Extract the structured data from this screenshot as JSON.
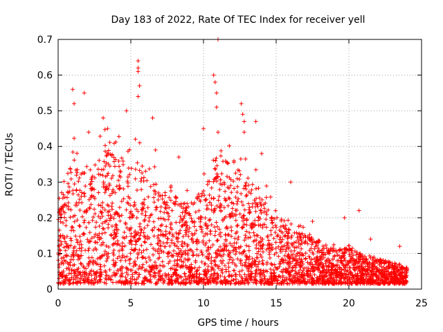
{
  "chart_data": {
    "type": "scatter",
    "title": "Day 183 of 2022, Rate Of TEC Index for receiver yell",
    "xlabel": "GPS time / hours",
    "ylabel": "ROTI / TECUs",
    "xlim": [
      0,
      25
    ],
    "ylim": [
      0,
      0.7
    ],
    "x_ticks": [
      0,
      5,
      10,
      15,
      20,
      25
    ],
    "y_ticks": [
      0,
      0.1,
      0.2,
      0.3,
      0.4,
      0.5,
      0.6,
      0.7
    ],
    "x_tick_labels": [
      "0",
      "5",
      "10",
      "15",
      "20",
      "25"
    ],
    "y_tick_labels": [
      "0",
      "0.1",
      "0.2",
      "0.3",
      "0.4",
      "0.5",
      "0.6",
      "0.7"
    ],
    "grid": true,
    "marker": "+",
    "color": "#ff0000",
    "x_range_of_data": [
      0,
      24
    ],
    "envelope": {
      "hours": [
        0,
        1,
        1.5,
        2,
        3,
        3.5,
        4,
        5,
        5.5,
        6,
        7,
        8,
        9,
        10,
        10.5,
        11,
        12,
        12.5,
        13,
        14,
        15,
        16,
        17,
        18,
        19,
        20,
        21,
        22,
        23,
        24
      ],
      "typical_max": [
        0.2,
        0.35,
        0.32,
        0.33,
        0.35,
        0.38,
        0.36,
        0.33,
        0.36,
        0.32,
        0.25,
        0.25,
        0.22,
        0.27,
        0.3,
        0.35,
        0.35,
        0.33,
        0.3,
        0.25,
        0.2,
        0.15,
        0.14,
        0.12,
        0.1,
        0.1,
        0.08,
        0.07,
        0.06,
        0.05
      ]
    },
    "notable_points": [
      {
        "x": 1.0,
        "y": 0.56
      },
      {
        "x": 1.1,
        "y": 0.52
      },
      {
        "x": 1.8,
        "y": 0.55
      },
      {
        "x": 2.1,
        "y": 0.44
      },
      {
        "x": 3.1,
        "y": 0.48
      },
      {
        "x": 3.4,
        "y": 0.45
      },
      {
        "x": 4.7,
        "y": 0.5
      },
      {
        "x": 5.5,
        "y": 0.64
      },
      {
        "x": 5.5,
        "y": 0.62
      },
      {
        "x": 5.5,
        "y": 0.61
      },
      {
        "x": 5.6,
        "y": 0.57
      },
      {
        "x": 5.5,
        "y": 0.54
      },
      {
        "x": 6.5,
        "y": 0.48
      },
      {
        "x": 6.7,
        "y": 0.39
      },
      {
        "x": 8.3,
        "y": 0.37
      },
      {
        "x": 10.0,
        "y": 0.45
      },
      {
        "x": 10.7,
        "y": 0.6
      },
      {
        "x": 10.8,
        "y": 0.58
      },
      {
        "x": 10.9,
        "y": 0.55
      },
      {
        "x": 10.9,
        "y": 0.51
      },
      {
        "x": 11.0,
        "y": 0.7
      },
      {
        "x": 11.0,
        "y": 0.44
      },
      {
        "x": 12.6,
        "y": 0.52
      },
      {
        "x": 12.7,
        "y": 0.49
      },
      {
        "x": 12.8,
        "y": 0.47
      },
      {
        "x": 12.8,
        "y": 0.44
      },
      {
        "x": 13.6,
        "y": 0.47
      },
      {
        "x": 14.0,
        "y": 0.38
      },
      {
        "x": 16.0,
        "y": 0.3
      },
      {
        "x": 17.5,
        "y": 0.19
      },
      {
        "x": 19.7,
        "y": 0.2
      },
      {
        "x": 20.7,
        "y": 0.22
      },
      {
        "x": 21.5,
        "y": 0.14
      },
      {
        "x": 23.5,
        "y": 0.12
      }
    ]
  }
}
